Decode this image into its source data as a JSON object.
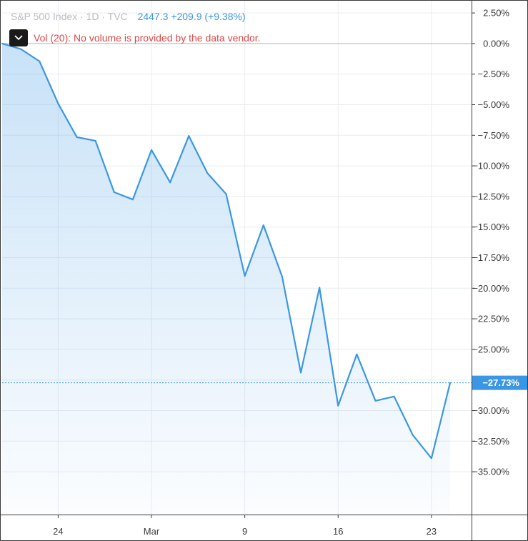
{
  "legend": {
    "title": "S&P 500 Index · 1D · TVC",
    "values": "2447.3  +209.9 (+9.38%)"
  },
  "vol": {
    "toggle_icon": "chevron-down-icon",
    "text": "Vol (20): No volume is provided by the data vendor."
  },
  "last_value_label": "−27.73%",
  "colors": {
    "line": "#3b97e3",
    "grid": "#e8edf1",
    "axis_text": "#3a3a3a",
    "vol_text": "#e04848",
    "badge_bg": "#3b97e3",
    "legend_muted": "#b9bcc3"
  },
  "chart_data": {
    "type": "area",
    "title": "S&P 500 Index",
    "y_unit": "%",
    "ylim": [
      -38.5,
      3.5
    ],
    "y_ticks": [
      2.5,
      0,
      -2.5,
      -5,
      -7.5,
      -10,
      -12.5,
      -15,
      -17.5,
      -20,
      -22.5,
      -25,
      -27.5,
      -30,
      -32.5,
      -35
    ],
    "y_tick_labels": [
      "2.50%",
      "0.00%",
      "−2.50%",
      "−5.00%",
      "−7.50%",
      "−10.00%",
      "−12.50%",
      "−15.00%",
      "−17.50%",
      "−20.00%",
      "−22.50%",
      "−25.00%",
      "−27.50%",
      "−30.00%",
      "−32.50%",
      "−35.00%"
    ],
    "x_ticks": [
      {
        "label": "24",
        "index": 3
      },
      {
        "label": "Mar",
        "index": 8
      },
      {
        "label": "9",
        "index": 13
      },
      {
        "label": "16",
        "index": 18
      },
      {
        "label": "23",
        "index": 23
      }
    ],
    "series": [
      {
        "values": [
          0.0,
          -0.45,
          -1.45,
          -4.9,
          -7.65,
          -7.95,
          -12.15,
          -12.75,
          -8.7,
          -11.35,
          -7.55,
          -10.6,
          -12.3,
          -19.0,
          -14.85,
          -19.05,
          -26.9,
          -19.95,
          -29.6,
          -25.4,
          -29.2,
          -28.85,
          -32.0,
          -33.9,
          -27.73
        ]
      }
    ],
    "last_value": -27.73,
    "grid": true,
    "baseline": 0
  }
}
